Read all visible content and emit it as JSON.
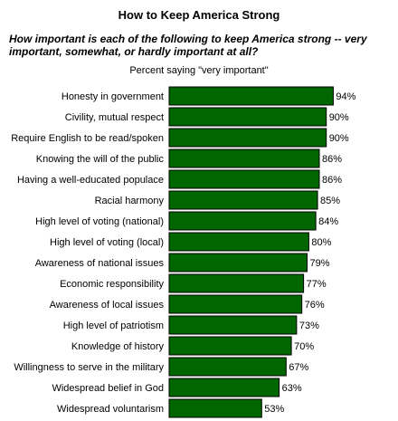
{
  "chart_data": {
    "type": "bar",
    "orientation": "horizontal",
    "title": "How to Keep America Strong",
    "subtitle": "How important is each of the following to keep America strong -- very important, somewhat, or hardly important at all?",
    "caption": "Percent saying \"very important\"",
    "categories": [
      "Honesty in government",
      "Civility, mutual respect",
      "Require English to be read/spoken",
      "Knowing the will of the public",
      "Having a well-educated populace",
      "Racial harmony",
      "High level of voting (national)",
      "High level of voting (local)",
      "Awareness of national issues",
      "Economic responsibility",
      "Awareness of local issues",
      "High level of patriotism",
      "Knowledge of history",
      "Willingness to serve in the military",
      "Widespread belief in God",
      "Widespread voluntarism"
    ],
    "values": [
      94,
      90,
      90,
      86,
      86,
      85,
      84,
      80,
      79,
      77,
      76,
      73,
      70,
      67,
      63,
      53
    ],
    "value_labels": [
      "94%",
      "90%",
      "90%",
      "86%",
      "86%",
      "85%",
      "84%",
      "80%",
      "79%",
      "77%",
      "76%",
      "73%",
      "70%",
      "67%",
      "63%",
      "53%"
    ],
    "xlim": [
      0,
      100
    ],
    "grid": false,
    "bar_color": "#006600"
  }
}
